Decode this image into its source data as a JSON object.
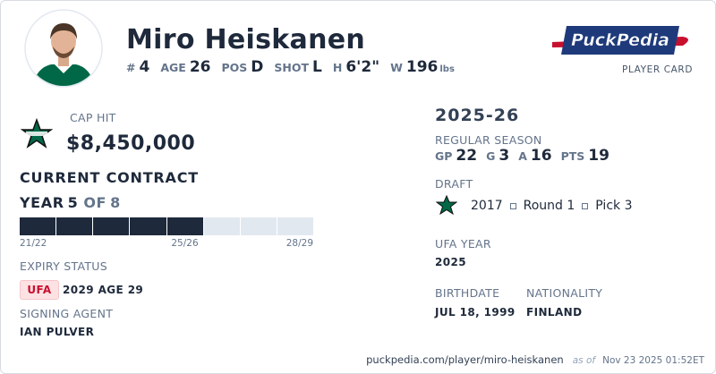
{
  "player": {
    "name": "Miro Heiskanen",
    "number_label": "#",
    "number": 4,
    "age_label": "AGE",
    "age": 26,
    "position_label": "POS",
    "position": "D",
    "shot_label": "SHOT",
    "shot": "L",
    "height_label": "H",
    "height": "6'2\"",
    "weight_label": "W",
    "weight": 196,
    "weight_unit": "lbs"
  },
  "brand": {
    "logo": "PuckPedia",
    "subtitle": "PLAYER CARD"
  },
  "contract": {
    "cap_hit_label": "CAP HIT",
    "cap_hit": "$8,450,000",
    "title": "CURRENT CONTRACT",
    "year_label": "YEAR",
    "year": 5,
    "of_label": "OF",
    "total_years": 8,
    "seasons": [
      "21/22",
      null,
      null,
      null,
      "25/26",
      null,
      null,
      "28/29"
    ]
  },
  "expiry": {
    "label": "EXPIRY STATUS",
    "badge": "UFA",
    "detail": "2029 AGE 29"
  },
  "agent": {
    "label": "SIGNING AGENT",
    "name": "IAN PULVER"
  },
  "season": {
    "title": "2025-26",
    "label": "REGULAR SEASON",
    "stats": [
      {
        "label": "GP",
        "value": 22
      },
      {
        "label": "G",
        "value": 3
      },
      {
        "label": "A",
        "value": 16
      },
      {
        "label": "PTS",
        "value": 19
      }
    ]
  },
  "draft": {
    "label": "DRAFT",
    "year": 2017,
    "round": "Round 1",
    "pick": "Pick 3"
  },
  "ufa_year": {
    "label": "UFA YEAR",
    "value": 2025
  },
  "birthdate": {
    "label": "BIRTHDATE",
    "value": "JUL 18, 1999"
  },
  "nationality": {
    "label": "NATIONALITY",
    "value": "FINLAND"
  },
  "footer": {
    "url": "puckpedia.com/player/miro-heiskanen",
    "as_of": "as of",
    "timestamp": "Nov 23 2025 01:52ET"
  }
}
